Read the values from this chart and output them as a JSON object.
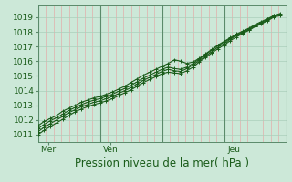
{
  "title": "Pression niveau de la mer( hPa )",
  "ylabel_ticks": [
    1011,
    1012,
    1013,
    1014,
    1015,
    1016,
    1017,
    1018,
    1019
  ],
  "ylim": [
    1010.5,
    1019.8
  ],
  "xlim": [
    0,
    96
  ],
  "xtick_positions": [
    4,
    28,
    76
  ],
  "xtick_labels": [
    "Mer",
    "Ven",
    "Jeu"
  ],
  "bg_color": "#cce8d8",
  "line_color": "#1a5c1a",
  "grid_color_h": "#aacfbb",
  "grid_color_v": "#e8a0a0",
  "day_sep_color": "#5a8a6a",
  "day_sep_positions": [
    0,
    24,
    48,
    72,
    96
  ],
  "series": [
    [
      1011.6,
      1011.9,
      1012.1,
      1012.3,
      1012.6,
      1012.8,
      1013.0,
      1013.2,
      1013.35,
      1013.5,
      1013.6,
      1013.75,
      1013.9,
      1014.1,
      1014.3,
      1014.55,
      1014.8,
      1015.05,
      1015.25,
      1015.45,
      1015.65,
      1015.85,
      1016.1,
      1016.0,
      1015.85,
      1015.95,
      1016.2,
      1016.5,
      1016.8,
      1017.1,
      1017.35,
      1017.6,
      1017.85,
      1018.05,
      1018.25,
      1018.5,
      1018.7,
      1018.9,
      1019.1,
      1019.25
    ],
    [
      1011.4,
      1011.7,
      1011.95,
      1012.15,
      1012.4,
      1012.65,
      1012.85,
      1013.05,
      1013.2,
      1013.35,
      1013.45,
      1013.6,
      1013.75,
      1013.95,
      1014.15,
      1014.35,
      1014.6,
      1014.85,
      1015.05,
      1015.25,
      1015.45,
      1015.6,
      1015.5,
      1015.45,
      1015.6,
      1015.85,
      1016.15,
      1016.45,
      1016.75,
      1017.05,
      1017.3,
      1017.55,
      1017.8,
      1018.0,
      1018.2,
      1018.45,
      1018.65,
      1018.85,
      1019.1,
      1019.2
    ],
    [
      1011.2,
      1011.5,
      1011.75,
      1012.0,
      1012.25,
      1012.5,
      1012.7,
      1012.9,
      1013.05,
      1013.2,
      1013.3,
      1013.45,
      1013.6,
      1013.8,
      1014.0,
      1014.2,
      1014.45,
      1014.7,
      1014.9,
      1015.1,
      1015.3,
      1015.45,
      1015.35,
      1015.3,
      1015.5,
      1015.75,
      1016.05,
      1016.35,
      1016.65,
      1016.95,
      1017.2,
      1017.5,
      1017.75,
      1017.95,
      1018.15,
      1018.4,
      1018.6,
      1018.8,
      1019.05,
      1019.15
    ],
    [
      1011.0,
      1011.3,
      1011.55,
      1011.8,
      1012.05,
      1012.3,
      1012.55,
      1012.75,
      1012.9,
      1013.05,
      1013.15,
      1013.3,
      1013.45,
      1013.65,
      1013.85,
      1014.05,
      1014.3,
      1014.55,
      1014.75,
      1014.95,
      1015.15,
      1015.25,
      1015.2,
      1015.15,
      1015.35,
      1015.6,
      1015.95,
      1016.25,
      1016.55,
      1016.85,
      1017.1,
      1017.4,
      1017.65,
      1017.9,
      1018.1,
      1018.35,
      1018.55,
      1018.75,
      1019.0,
      1019.1
    ]
  ],
  "x_values": [
    0,
    2.4,
    4.8,
    7.2,
    9.6,
    12.0,
    14.4,
    16.8,
    19.2,
    21.6,
    24.0,
    26.4,
    28.8,
    31.2,
    33.6,
    36.0,
    38.4,
    40.8,
    43.2,
    45.6,
    48.0,
    50.4,
    52.8,
    55.2,
    57.6,
    60.0,
    62.4,
    64.8,
    67.2,
    69.6,
    72.0,
    74.4,
    76.8,
    79.2,
    81.6,
    84.0,
    86.4,
    88.8,
    91.2,
    93.6
  ],
  "marker": "+",
  "marker_size": 3.5,
  "line_width": 0.8,
  "title_fontsize": 8.5,
  "tick_fontsize": 6.5
}
